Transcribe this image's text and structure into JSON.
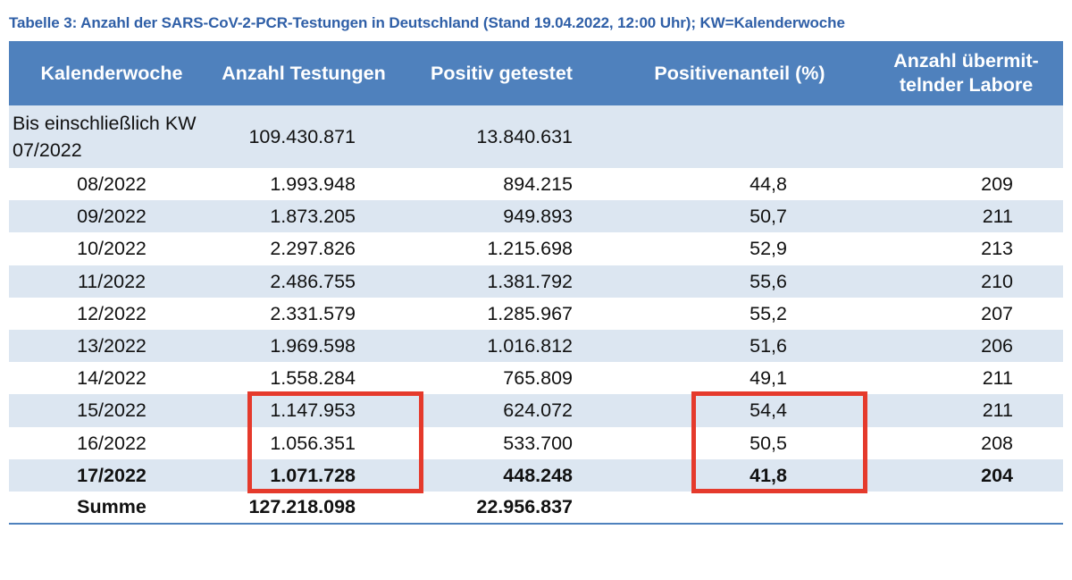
{
  "caption": "Tabelle 3: Anzahl der SARS-CoV-2-PCR-Testungen in Deutschland (Stand 19.04.2022, 12:00 Uhr); KW=Kalenderwoche",
  "headers": {
    "kw": "Kalenderwoche",
    "tests": "Anzahl Testungen",
    "positive": "Positiv getestet",
    "rate": "Positivenanteil (%)",
    "labs_line1": "Anzahl übermit-",
    "labs_line2": "telnder Labore"
  },
  "rows": [
    {
      "kw": "Bis einschließlich KW 07/2022",
      "tests": "109.430.871",
      "positive": "13.840.631",
      "rate": "",
      "labs": ""
    },
    {
      "kw": "08/2022",
      "tests": "1.993.948",
      "positive": "894.215",
      "rate": "44,8",
      "labs": "209"
    },
    {
      "kw": "09/2022",
      "tests": "1.873.205",
      "positive": "949.893",
      "rate": "50,7",
      "labs": "211"
    },
    {
      "kw": "10/2022",
      "tests": "2.297.826",
      "positive": "1.215.698",
      "rate": "52,9",
      "labs": "213"
    },
    {
      "kw": "11/2022",
      "tests": "2.486.755",
      "positive": "1.381.792",
      "rate": "55,6",
      "labs": "210"
    },
    {
      "kw": "12/2022",
      "tests": "2.331.579",
      "positive": "1.285.967",
      "rate": "55,2",
      "labs": "207"
    },
    {
      "kw": "13/2022",
      "tests": "1.969.598",
      "positive": "1.016.812",
      "rate": "51,6",
      "labs": "206"
    },
    {
      "kw": "14/2022",
      "tests": "1.558.284",
      "positive": "765.809",
      "rate": "49,1",
      "labs": "211"
    },
    {
      "kw": "15/2022",
      "tests": "1.147.953",
      "positive": "624.072",
      "rate": "54,4",
      "labs": "211"
    },
    {
      "kw": "16/2022",
      "tests": "1.056.351",
      "positive": "533.700",
      "rate": "50,5",
      "labs": "208"
    },
    {
      "kw": "17/2022",
      "tests": "1.071.728",
      "positive": "448.248",
      "rate": "41,8",
      "labs": "204"
    }
  ],
  "sum": {
    "label": "Summe",
    "tests": "127.218.098",
    "positive": "22.956.837"
  },
  "highlight_color": "#e53a2c",
  "header_color": "#4f81bd",
  "stripe_color": "#dce6f1"
}
